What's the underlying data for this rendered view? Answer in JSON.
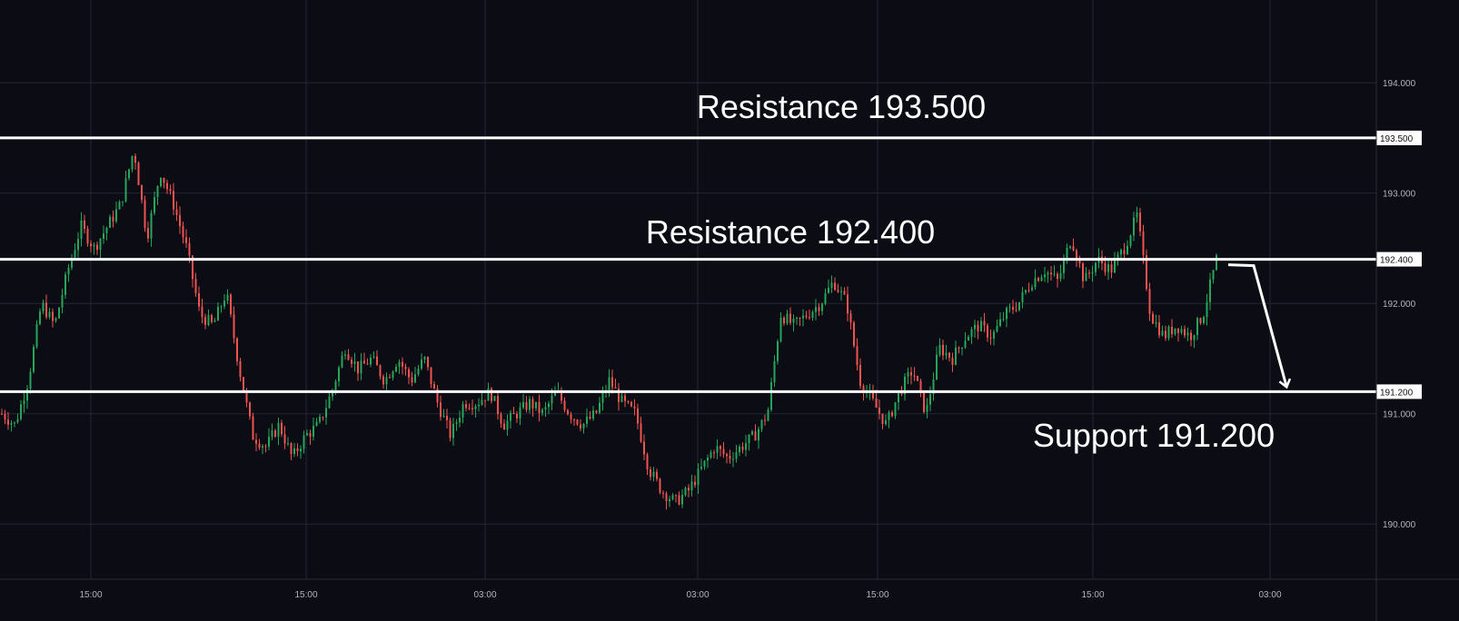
{
  "chart_data": {
    "type": "candlestick",
    "title": "",
    "xlabel": "",
    "ylabel": "",
    "ylim": [
      189.5,
      194.75
    ],
    "grid": true,
    "x_tick_labels": [
      "15:00",
      "15:00",
      "03:00",
      "03:00",
      "15:00",
      "15:00",
      "03:00"
    ],
    "y_tick_labels": [
      "194.000",
      "193.000",
      "192.000",
      "191.000",
      "190.000"
    ],
    "y_ticks": [
      194.0,
      193.0,
      192.0,
      191.0,
      190.0
    ],
    "levels": [
      {
        "label": "Resistance 193.500",
        "tag": "193.500",
        "value": 193.5
      },
      {
        "label": "Resistance 192.400",
        "tag": "192.400",
        "value": 192.4
      },
      {
        "label": "Support 191.200",
        "tag": "191.200",
        "value": 191.2
      }
    ],
    "price_path": [
      191.0,
      190.9,
      191.3,
      192.0,
      191.8,
      192.3,
      192.7,
      192.5,
      192.7,
      192.9,
      193.4,
      192.6,
      193.2,
      192.9,
      192.5,
      191.9,
      191.8,
      192.1,
      191.4,
      190.8,
      190.7,
      190.9,
      190.6,
      190.8,
      190.9,
      191.2,
      191.6,
      191.4,
      191.5,
      191.3,
      191.5,
      191.3,
      191.5,
      191.1,
      190.8,
      191.1,
      191.1,
      191.2,
      190.9,
      191.0,
      191.1,
      191.0,
      191.2,
      191.0,
      190.9,
      191.0,
      191.3,
      191.1,
      191.0,
      190.5,
      190.3,
      190.2,
      190.3,
      190.5,
      190.7,
      190.6,
      190.7,
      190.8,
      191.0,
      191.9,
      191.8,
      191.9,
      192.0,
      192.2,
      192.0,
      191.3,
      191.1,
      190.9,
      191.2,
      191.4,
      191.0,
      191.6,
      191.5,
      191.7,
      191.8,
      191.7,
      191.9,
      192.0,
      192.2,
      192.3,
      192.2,
      192.6,
      192.2,
      192.4,
      192.3,
      192.5,
      192.8,
      191.9,
      191.7,
      191.8,
      191.7,
      191.9,
      192.4
    ],
    "forecast": [
      192.4,
      191.2
    ]
  }
}
